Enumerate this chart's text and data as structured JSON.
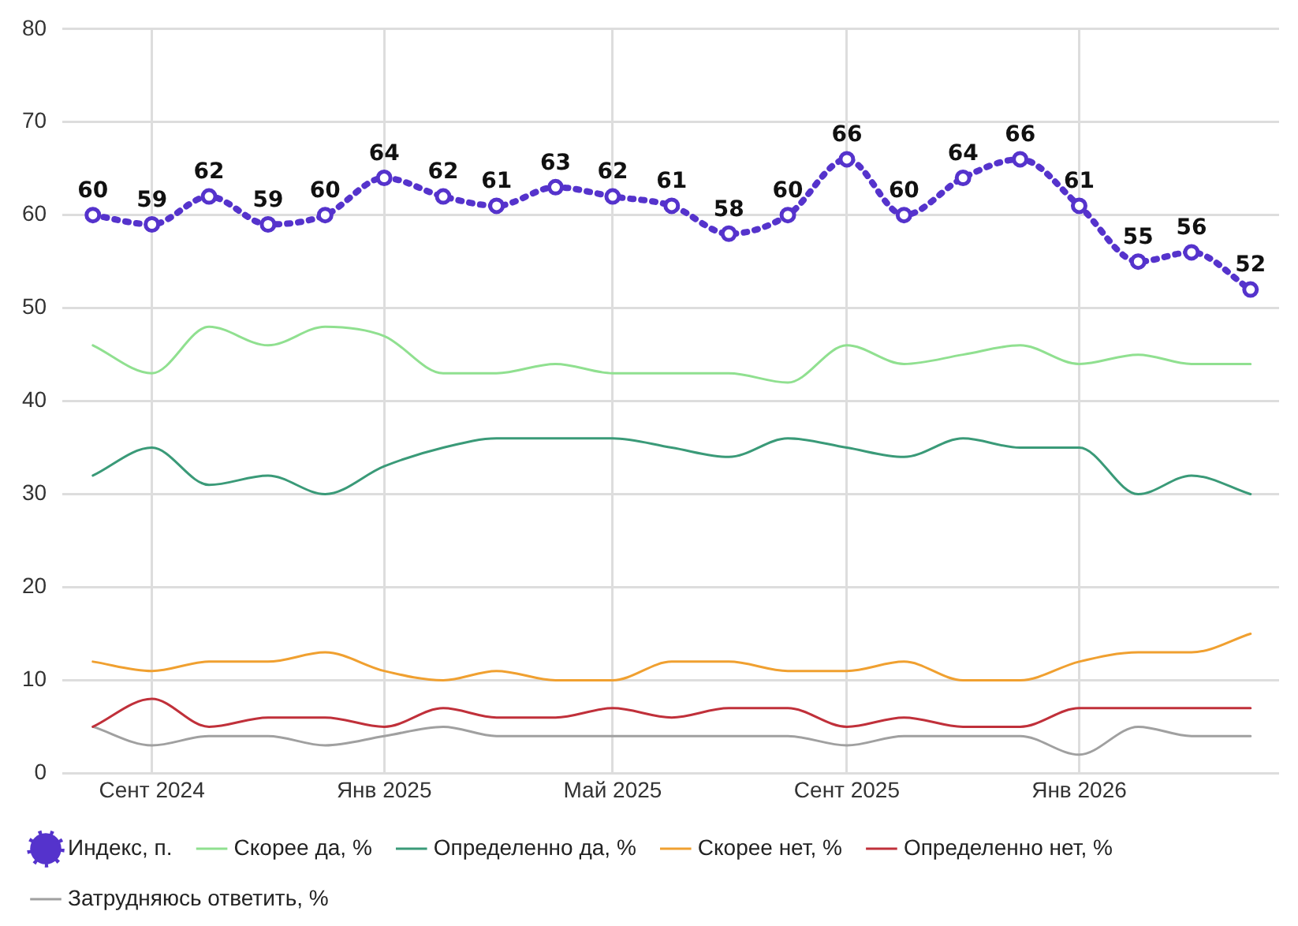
{
  "chart_data": {
    "type": "line",
    "x": [
      "2024-08",
      "2024-09",
      "2024-10",
      "2024-11",
      "2024-12",
      "2025-01",
      "2025-02",
      "2025-03",
      "2025-04",
      "2025-05",
      "2025-06",
      "2025-07",
      "2025-08",
      "2025-09",
      "2025-10",
      "2025-11",
      "2025-12",
      "2026-01",
      "2026-02",
      "2026-03",
      "2026-04"
    ],
    "xlim": [
      "2024-07-16",
      "2026-04-16"
    ],
    "xticks": [
      {
        "value": "2024-09",
        "label": "Сент 2024"
      },
      {
        "value": "2025-01",
        "label": "Янв 2025"
      },
      {
        "value": "2025-05",
        "label": "Май 2025"
      },
      {
        "value": "2025-09",
        "label": "Сент 2025"
      },
      {
        "value": "2026-01",
        "label": "Янв 2026"
      }
    ],
    "ylim": [
      0,
      80
    ],
    "yticks": [
      0,
      10,
      20,
      30,
      40,
      50,
      60,
      70,
      80
    ],
    "grid": true,
    "legend": "bottom",
    "series": [
      {
        "name": "Индекс, п.",
        "color": "#5533cc",
        "marker": "circle",
        "line_style": "dotted",
        "data_labels": true,
        "values": [
          60,
          59,
          62,
          59,
          60,
          64,
          62,
          61,
          63,
          62,
          61,
          58,
          60,
          66,
          60,
          64,
          66,
          61,
          55,
          56,
          52
        ]
      },
      {
        "name": "Скорее да, %",
        "color": "#90e090",
        "marker": "none",
        "line_style": "solid",
        "values": [
          46,
          43,
          48,
          46,
          48,
          47,
          43,
          43,
          44,
          43,
          43,
          43,
          42,
          46,
          44,
          45,
          46,
          44,
          45,
          44,
          44
        ]
      },
      {
        "name": "Определенно да, %",
        "color": "#3a9a78",
        "marker": "none",
        "line_style": "solid",
        "values": [
          32,
          35,
          31,
          32,
          30,
          33,
          35,
          36,
          36,
          36,
          35,
          34,
          36,
          35,
          34,
          36,
          35,
          35,
          30,
          32,
          30
        ]
      },
      {
        "name": "Скорее нет, %",
        "color": "#f0a030",
        "marker": "none",
        "line_style": "solid",
        "values": [
          12,
          11,
          12,
          12,
          13,
          11,
          10,
          11,
          10,
          10,
          12,
          12,
          11,
          11,
          12,
          10,
          10,
          12,
          13,
          13,
          15
        ]
      },
      {
        "name": "Определенно нет, %",
        "color": "#c0303a",
        "marker": "none",
        "line_style": "solid",
        "values": [
          5,
          8,
          5,
          6,
          6,
          5,
          7,
          6,
          6,
          7,
          6,
          7,
          7,
          5,
          6,
          5,
          5,
          7,
          7,
          7,
          7
        ]
      },
      {
        "name": "Затрудняюсь ответить, %",
        "color": "#a0a0a0",
        "marker": "none",
        "line_style": "solid",
        "values": [
          5,
          3,
          4,
          4,
          3,
          4,
          5,
          4,
          4,
          4,
          4,
          4,
          4,
          3,
          4,
          4,
          4,
          2,
          5,
          4,
          4
        ]
      }
    ]
  }
}
